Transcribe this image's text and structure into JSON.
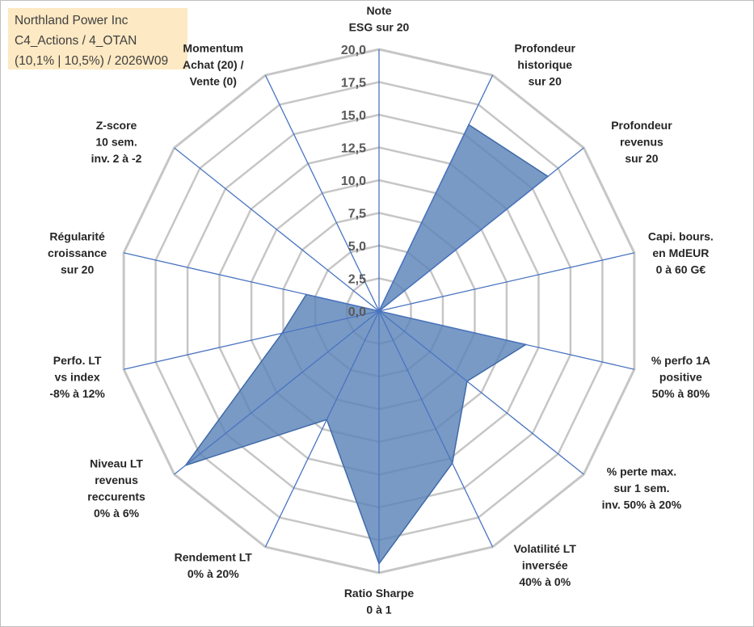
{
  "title_box": {
    "line1": "Northland Power Inc",
    "line2": "C4_Actions / 4_OTAN",
    "line3": "(10,1% | 10,5%) / 2026W09"
  },
  "colors": {
    "fill": "#5b84b8",
    "edge": "#3f6aa8",
    "spoke": "#4a74c0",
    "grid": "#c6c6c6",
    "title_bg": "#fde9c3"
  },
  "chart_data": {
    "type": "radar",
    "rmin": 0,
    "rmax": 20,
    "grid_step": 2.5,
    "tick_labels": [
      "0,0",
      "2,5",
      "5,0",
      "7,5",
      "10,0",
      "12,5",
      "15,0",
      "17,5",
      "20,0"
    ],
    "axes": [
      {
        "lines": [
          "Note",
          "ESG sur 20"
        ],
        "value": 0
      },
      {
        "lines": [
          "Profondeur",
          "historique",
          "sur 20"
        ],
        "value": 15.8
      },
      {
        "lines": [
          "Profondeur",
          "revenus",
          "sur 20"
        ],
        "value": 16.5
      },
      {
        "lines": [
          "Capi. bours.",
          "en MdEUR",
          "0 à 60 G€"
        ],
        "value": 0
      },
      {
        "lines": [
          "% perfo 1A",
          "positive",
          "50% à 80%"
        ],
        "value": 11.5
      },
      {
        "lines": [
          "% perte max.",
          "sur 1 sem.",
          "inv. 50% à 20%"
        ],
        "value": 8.6
      },
      {
        "lines": [
          "Volatilité LT",
          "inversée",
          "40% à 0%"
        ],
        "value": 12.9
      },
      {
        "lines": [
          "Ratio Sharpe",
          "0 à 1"
        ],
        "value": 19.3
      },
      {
        "lines": [
          "Rendement LT",
          "0% à 20%"
        ],
        "value": 9.2
      },
      {
        "lines": [
          "Niveau LT",
          "revenus",
          "reccurents",
          "0% à 6%"
        ],
        "value": 18.9
      },
      {
        "lines": [
          "Perfo. LT",
          "vs index",
          "-8% à 12%"
        ],
        "value": 7.6
      },
      {
        "lines": [
          "Régularité",
          "croissance",
          "sur 20"
        ],
        "value": 5.7
      },
      {
        "lines": [
          "Z-score",
          "10 sem.",
          "inv. 2 à -2"
        ],
        "value": 0
      },
      {
        "lines": [
          "Momentum",
          "Achat (20) /",
          "Vente (0)"
        ],
        "value": 0
      }
    ]
  }
}
